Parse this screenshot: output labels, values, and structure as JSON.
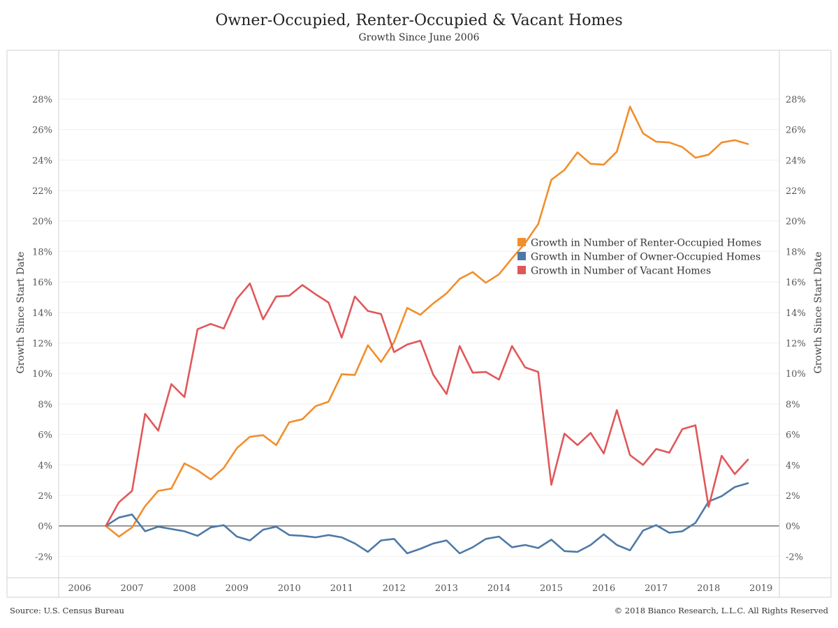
{
  "chart_data": {
    "type": "line",
    "title": "Owner-Occupied, Renter-Occupied & Vacant Homes",
    "subtitle": "Growth Since June 2006",
    "ylabel_left": "Growth Since Start Date",
    "ylabel_right": "Growth Since Start Date",
    "ylim": [
      -3.4,
      31.2
    ],
    "yticks": [
      -2,
      0,
      2,
      4,
      6,
      8,
      10,
      12,
      14,
      16,
      18,
      20,
      22,
      24,
      26,
      28
    ],
    "ytick_labels": [
      "-2%",
      "0%",
      "2%",
      "4%",
      "6%",
      "8%",
      "10%",
      "12%",
      "14%",
      "16%",
      "18%",
      "20%",
      "22%",
      "24%",
      "26%",
      "28%"
    ],
    "xlim": [
      2005.6,
      2019.35
    ],
    "xticks": [
      2006,
      2007,
      2008,
      2009,
      2010,
      2011,
      2012,
      2013,
      2014,
      2015,
      2016,
      2017,
      2018,
      2019
    ],
    "xtick_labels": [
      "2006",
      "2007",
      "2008",
      "2009",
      "2010",
      "2011",
      "2012",
      "2013",
      "2014",
      "2015",
      "2016",
      "2017",
      "2018",
      "2019"
    ],
    "legend_position": "right-middle",
    "grid": true,
    "series": [
      {
        "name": "Growth in Number of Renter-Occupied Homes",
        "color": "#F28E2B",
        "points": [
          [
            2006.5,
            0.0
          ],
          [
            2006.75,
            -0.7
          ],
          [
            2007.0,
            -0.1
          ],
          [
            2007.25,
            1.3
          ],
          [
            2007.5,
            2.3
          ],
          [
            2007.75,
            2.45
          ],
          [
            2008.0,
            4.1
          ],
          [
            2008.25,
            3.65
          ],
          [
            2008.5,
            3.05
          ],
          [
            2008.75,
            3.8
          ],
          [
            2009.0,
            5.1
          ],
          [
            2009.25,
            5.85
          ],
          [
            2009.5,
            5.95
          ],
          [
            2009.75,
            5.3
          ],
          [
            2010.0,
            6.8
          ],
          [
            2010.25,
            7.0
          ],
          [
            2010.5,
            7.85
          ],
          [
            2010.75,
            8.15
          ],
          [
            2011.0,
            9.95
          ],
          [
            2011.25,
            9.9
          ],
          [
            2011.5,
            11.85
          ],
          [
            2011.75,
            10.75
          ],
          [
            2012.0,
            12.05
          ],
          [
            2012.25,
            14.3
          ],
          [
            2012.5,
            13.85
          ],
          [
            2012.75,
            14.6
          ],
          [
            2013.0,
            15.25
          ],
          [
            2013.25,
            16.2
          ],
          [
            2013.5,
            16.65
          ],
          [
            2013.75,
            15.95
          ],
          [
            2014.0,
            16.5
          ],
          [
            2014.25,
            17.55
          ],
          [
            2014.5,
            18.55
          ],
          [
            2014.75,
            19.8
          ],
          [
            2015.0,
            22.7
          ],
          [
            2015.25,
            23.35
          ],
          [
            2015.5,
            24.5
          ],
          [
            2015.75,
            23.75
          ],
          [
            2016.0,
            23.7
          ],
          [
            2016.25,
            24.55
          ],
          [
            2016.5,
            27.5
          ],
          [
            2016.75,
            25.75
          ],
          [
            2017.0,
            25.2
          ],
          [
            2017.25,
            25.15
          ],
          [
            2017.5,
            24.85
          ],
          [
            2017.75,
            24.15
          ],
          [
            2018.0,
            24.35
          ],
          [
            2018.25,
            25.15
          ],
          [
            2018.5,
            25.3
          ],
          [
            2018.75,
            25.05
          ]
        ]
      },
      {
        "name": "Growth in Number of Owner-Occupied Homes",
        "color": "#4E79A7",
        "points": [
          [
            2006.5,
            0.0
          ],
          [
            2006.75,
            0.55
          ],
          [
            2007.0,
            0.75
          ],
          [
            2007.25,
            -0.35
          ],
          [
            2007.5,
            -0.05
          ],
          [
            2007.75,
            -0.2
          ],
          [
            2008.0,
            -0.35
          ],
          [
            2008.25,
            -0.65
          ],
          [
            2008.5,
            -0.1
          ],
          [
            2008.75,
            0.05
          ],
          [
            2009.0,
            -0.7
          ],
          [
            2009.25,
            -0.95
          ],
          [
            2009.5,
            -0.25
          ],
          [
            2009.75,
            -0.05
          ],
          [
            2010.0,
            -0.6
          ],
          [
            2010.25,
            -0.65
          ],
          [
            2010.5,
            -0.75
          ],
          [
            2010.75,
            -0.6
          ],
          [
            2011.0,
            -0.75
          ],
          [
            2011.25,
            -1.15
          ],
          [
            2011.5,
            -1.7
          ],
          [
            2011.75,
            -0.95
          ],
          [
            2012.0,
            -0.85
          ],
          [
            2012.25,
            -1.8
          ],
          [
            2012.5,
            -1.5
          ],
          [
            2012.75,
            -1.15
          ],
          [
            2013.0,
            -0.95
          ],
          [
            2013.25,
            -1.8
          ],
          [
            2013.5,
            -1.4
          ],
          [
            2013.75,
            -0.85
          ],
          [
            2014.0,
            -0.7
          ],
          [
            2014.25,
            -1.4
          ],
          [
            2014.5,
            -1.25
          ],
          [
            2014.75,
            -1.45
          ],
          [
            2015.0,
            -0.9
          ],
          [
            2015.25,
            -1.65
          ],
          [
            2015.5,
            -1.7
          ],
          [
            2015.75,
            -1.25
          ],
          [
            2016.0,
            -0.55
          ],
          [
            2016.25,
            -1.25
          ],
          [
            2016.5,
            -1.6
          ],
          [
            2016.75,
            -0.3
          ],
          [
            2017.0,
            0.05
          ],
          [
            2017.25,
            -0.45
          ],
          [
            2017.5,
            -0.35
          ],
          [
            2017.75,
            0.2
          ],
          [
            2018.0,
            1.6
          ],
          [
            2018.25,
            1.95
          ],
          [
            2018.5,
            2.55
          ],
          [
            2018.75,
            2.8
          ]
        ]
      },
      {
        "name": "Growth in Number of Vacant Homes",
        "color": "#E15759",
        "points": [
          [
            2006.5,
            0.0
          ],
          [
            2006.75,
            1.55
          ],
          [
            2007.0,
            2.3
          ],
          [
            2007.25,
            7.35
          ],
          [
            2007.5,
            6.25
          ],
          [
            2007.75,
            9.3
          ],
          [
            2008.0,
            8.45
          ],
          [
            2008.25,
            12.9
          ],
          [
            2008.5,
            13.25
          ],
          [
            2008.75,
            12.95
          ],
          [
            2009.0,
            14.9
          ],
          [
            2009.25,
            15.9
          ],
          [
            2009.5,
            13.55
          ],
          [
            2009.75,
            15.05
          ],
          [
            2010.0,
            15.1
          ],
          [
            2010.25,
            15.8
          ],
          [
            2010.5,
            15.2
          ],
          [
            2010.75,
            14.65
          ],
          [
            2011.0,
            12.35
          ],
          [
            2011.25,
            15.05
          ],
          [
            2011.5,
            14.1
          ],
          [
            2011.75,
            13.9
          ],
          [
            2012.0,
            11.4
          ],
          [
            2012.25,
            11.9
          ],
          [
            2012.5,
            12.15
          ],
          [
            2012.75,
            9.9
          ],
          [
            2013.0,
            8.65
          ],
          [
            2013.25,
            11.8
          ],
          [
            2013.5,
            10.05
          ],
          [
            2013.75,
            10.1
          ],
          [
            2014.0,
            9.6
          ],
          [
            2014.25,
            11.8
          ],
          [
            2014.5,
            10.4
          ],
          [
            2014.75,
            10.1
          ],
          [
            2015.0,
            2.7
          ],
          [
            2015.25,
            6.05
          ],
          [
            2015.5,
            5.3
          ],
          [
            2015.75,
            6.1
          ],
          [
            2016.0,
            4.75
          ],
          [
            2016.25,
            7.6
          ],
          [
            2016.5,
            4.65
          ],
          [
            2016.75,
            4.0
          ],
          [
            2017.0,
            5.05
          ],
          [
            2017.25,
            4.8
          ],
          [
            2017.5,
            6.35
          ],
          [
            2017.75,
            6.6
          ],
          [
            2018.0,
            1.25
          ],
          [
            2018.25,
            4.6
          ],
          [
            2018.5,
            3.4
          ],
          [
            2018.75,
            4.35
          ]
        ]
      }
    ]
  },
  "footer": {
    "source": "Source: U.S. Census Bureau",
    "copyright": "© 2018 Bianco Research, L.L.C. All Rights Reserved"
  }
}
